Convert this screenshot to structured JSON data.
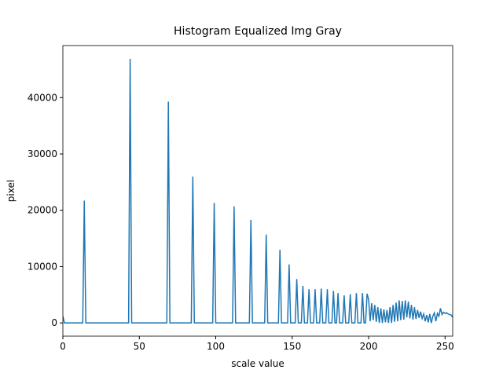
{
  "chart_data": {
    "type": "line",
    "title": "Histogram Equalized Img Gray",
    "xlabel": "scale value",
    "ylabel": "pixel",
    "xlim": [
      0,
      255
    ],
    "ylim": [
      -2345,
      49245
    ],
    "xticks": [
      0,
      50,
      100,
      150,
      200,
      250
    ],
    "yticks": [
      0,
      10000,
      20000,
      30000,
      40000
    ],
    "grid": false,
    "series": [
      {
        "color": "#1f77b4",
        "x": [
          0,
          1,
          2,
          3,
          4,
          5,
          6,
          7,
          8,
          9,
          10,
          11,
          12,
          13,
          14,
          15,
          16,
          17,
          18,
          19,
          20,
          21,
          22,
          23,
          24,
          25,
          26,
          27,
          28,
          29,
          30,
          31,
          32,
          33,
          34,
          35,
          36,
          37,
          38,
          39,
          40,
          41,
          42,
          43,
          44,
          45,
          46,
          47,
          48,
          49,
          50,
          51,
          52,
          53,
          54,
          55,
          56,
          57,
          58,
          59,
          60,
          61,
          62,
          63,
          64,
          65,
          66,
          67,
          68,
          69,
          70,
          71,
          72,
          73,
          74,
          75,
          76,
          77,
          78,
          79,
          80,
          81,
          82,
          83,
          84,
          85,
          86,
          87,
          88,
          89,
          90,
          91,
          92,
          93,
          94,
          95,
          96,
          97,
          98,
          99,
          100,
          101,
          102,
          103,
          104,
          105,
          106,
          107,
          108,
          109,
          110,
          111,
          112,
          113,
          114,
          115,
          116,
          117,
          118,
          119,
          120,
          121,
          122,
          123,
          124,
          125,
          126,
          127,
          128,
          129,
          130,
          131,
          132,
          133,
          134,
          135,
          136,
          137,
          138,
          139,
          140,
          141,
          142,
          143,
          144,
          145,
          146,
          147,
          148,
          149,
          150,
          151,
          152,
          153,
          154,
          155,
          156,
          157,
          158,
          159,
          160,
          161,
          162,
          163,
          164,
          165,
          166,
          167,
          168,
          169,
          170,
          171,
          172,
          173,
          174,
          175,
          176,
          177,
          178,
          179,
          180,
          181,
          182,
          183,
          184,
          185,
          186,
          187,
          188,
          189,
          190,
          191,
          192,
          193,
          194,
          195,
          196,
          197,
          198,
          199,
          200,
          201,
          202,
          203,
          204,
          205,
          206,
          207,
          208,
          209,
          210,
          211,
          212,
          213,
          214,
          215,
          216,
          217,
          218,
          219,
          220,
          221,
          222,
          223,
          224,
          225,
          226,
          227,
          228,
          229,
          230,
          231,
          232,
          233,
          234,
          235,
          236,
          237,
          238,
          239,
          240,
          241,
          242,
          243,
          244,
          245,
          246,
          247,
          248,
          249,
          250,
          251,
          252,
          253,
          254,
          255
        ],
        "values": [
          1200,
          0,
          0,
          0,
          0,
          0,
          0,
          0,
          0,
          0,
          0,
          0,
          0,
          0,
          21700,
          0,
          0,
          0,
          0,
          0,
          0,
          0,
          0,
          0,
          0,
          0,
          0,
          0,
          0,
          0,
          0,
          0,
          0,
          0,
          0,
          0,
          0,
          0,
          0,
          0,
          0,
          0,
          0,
          0,
          46900,
          0,
          0,
          0,
          0,
          0,
          0,
          0,
          0,
          0,
          0,
          0,
          0,
          0,
          0,
          0,
          0,
          0,
          0,
          0,
          0,
          0,
          0,
          0,
          0,
          39300,
          0,
          0,
          0,
          0,
          0,
          0,
          0,
          0,
          0,
          0,
          0,
          0,
          0,
          0,
          0,
          26000,
          0,
          0,
          0,
          0,
          0,
          0,
          0,
          0,
          0,
          0,
          0,
          0,
          0,
          21300,
          0,
          0,
          0,
          0,
          0,
          0,
          0,
          0,
          0,
          0,
          0,
          0,
          20700,
          0,
          0,
          0,
          0,
          0,
          0,
          0,
          0,
          0,
          0,
          18300,
          0,
          0,
          0,
          0,
          0,
          0,
          0,
          0,
          0,
          15700,
          0,
          0,
          0,
          0,
          0,
          0,
          0,
          0,
          13000,
          0,
          0,
          0,
          0,
          0,
          10400,
          0,
          0,
          0,
          0,
          7800,
          0,
          0,
          0,
          6600,
          0,
          0,
          0,
          6000,
          0,
          0,
          0,
          6000,
          0,
          0,
          0,
          6100,
          0,
          0,
          0,
          6000,
          0,
          0,
          0,
          5700,
          0,
          0,
          5300,
          0,
          0,
          0,
          4900,
          0,
          0,
          0,
          5100,
          0,
          0,
          0,
          5300,
          0,
          0,
          0,
          5300,
          0,
          0,
          5200,
          4200,
          300,
          3500,
          500,
          3200,
          200,
          2800,
          0,
          2600,
          0,
          2400,
          100,
          2300,
          0,
          2800,
          0,
          3200,
          200,
          3600,
          300,
          4000,
          500,
          3900,
          600,
          4000,
          1000,
          3800,
          800,
          3200,
          600,
          2800,
          700,
          2300,
          900,
          2000,
          800,
          1600,
          300,
          1400,
          100,
          1600,
          0,
          1200,
          1800,
          300,
          1700,
          1200,
          2600,
          1500,
          1900,
          1700,
          1800,
          1600,
          1500,
          1400,
          1000
        ]
      }
    ]
  }
}
